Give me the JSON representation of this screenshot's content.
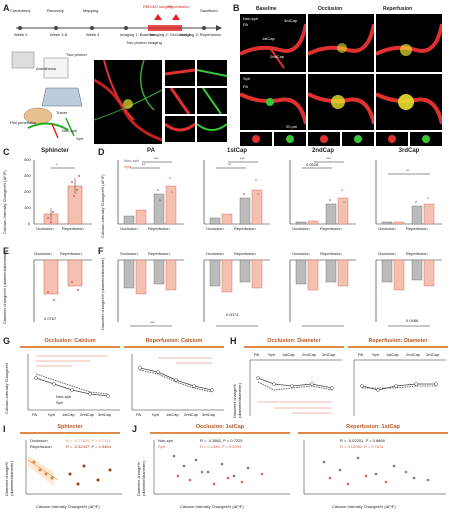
{
  "panels": {
    "A": "A",
    "B": "B",
    "C": "C",
    "D": "D",
    "E": "E",
    "F": "F",
    "G": "G",
    "H": "H",
    "I": "I",
    "J": "J"
  },
  "timeline": {
    "steps": [
      "Craniotomy",
      "Recovery",
      "Mapping",
      "Two photon imaging",
      "Sacrificed"
    ],
    "weeks": [
      "Week 0",
      "Week 3-8",
      "Week 4",
      "Imaging 1: Baseline",
      "Imaging 2: Occlusion 1",
      "Imaging 3: Reperfusion"
    ],
    "surgery_labels": [
      "RMCAO surgery",
      "Reperfusion"
    ],
    "duration": "1 hour",
    "imaging_label": "Two photon imaging"
  },
  "setup_labels": [
    "Anesthesia",
    "Two photon",
    "Tracer",
    "Pial penetrator",
    "Non-sph",
    "Sph"
  ],
  "colors": {
    "red": "#e02020",
    "green": "#38c838",
    "yellow": "#e8e030",
    "dark_orange": "#b8561e",
    "salmon": "#f0a090",
    "gray": "#999999"
  },
  "B": {
    "columns": [
      "Baseline",
      "Occlusion",
      "Reperfusion"
    ],
    "rows": [
      "Non-sph",
      "Sph"
    ],
    "labels": [
      "PA",
      "1stCap",
      "2ndCap",
      "3rdCap",
      "Sph",
      "PA"
    ],
    "scale": "20 μm"
  },
  "C": {
    "title": "Sphincter",
    "ylabel": "Calcium Intensity Changes% (ΔF/F)",
    "categories": [
      "Occlusion",
      "Reperfusion"
    ],
    "yticks": [
      "0",
      "100",
      "200",
      "300",
      "400"
    ],
    "sig": "*"
  },
  "D": {
    "ylabel": "Calcium Intensity Changes% (ΔF/F)",
    "legend": [
      "Non-sph",
      "Sph"
    ],
    "categories": [
      "Occlusion",
      "Reperfusion"
    ],
    "subplots": [
      {
        "title": "PA",
        "sig": [
          "**",
          "***",
          "*"
        ]
      },
      {
        "title": "1stCap",
        "sig": [
          "**",
          "*",
          "***"
        ]
      },
      {
        "title": "2ndCap",
        "sig": [
          "0.0528",
          "*",
          "***"
        ]
      },
      {
        "title": "3rdCap",
        "sig": [
          "**"
        ]
      }
    ],
    "yticks": [
      "0",
      "200",
      "400",
      "600",
      "800"
    ]
  },
  "E": {
    "ylabel": "Diameter changes% (diameter/diameter)",
    "categories": [
      "Occlusion",
      "Reperfusion"
    ],
    "pval": "0.0767",
    "yticks": [
      "0",
      "-20",
      "-40",
      "-60",
      "-80"
    ]
  },
  "F": {
    "ylabel": "Diameter changes% (diameter/diameter)",
    "categories": [
      "Occlusion",
      "Reperfusion"
    ],
    "pvals": [
      "0.0074",
      "0.0486"
    ],
    "sig": [
      "***",
      "**",
      "*",
      "*",
      "*",
      "*"
    ],
    "yticks": [
      "0",
      "-20",
      "-40",
      "-60",
      "-80"
    ]
  },
  "G": {
    "titles": [
      "Occlusion: Calcium",
      "Reperfusion: Calcium"
    ],
    "ylabel": "Calcium Intensity Changes%",
    "xticks": [
      "PA",
      "Sph",
      "1stCap",
      "2ndCap",
      "3rdCap"
    ],
    "legend": [
      "Non-sph",
      "Sph"
    ],
    "yticks": [
      "0",
      "100",
      "200",
      "300"
    ]
  },
  "H": {
    "titles": [
      "Occlusion: Diameter",
      "Reperfusion: Diameter"
    ],
    "ylabel": "Diameter change% (diameter/diameter)",
    "xticks": [
      "PA",
      "Sph",
      "1stCap",
      "2ndCap",
      "3rdCap"
    ],
    "yticks": [
      "0",
      "-20",
      "-40",
      "-60"
    ]
  },
  "I": {
    "title": "Sphincter",
    "legend": [
      "Occlusion",
      "Reperfusion"
    ],
    "stats": [
      "R = -0.77520, P = 0.7111",
      "R = -0.32437, P = 0.5454"
    ],
    "xlabel": "Calcium Intensity Changes% (ΔF/F)",
    "ylabel": "Diameter change% (diameter/diameter)"
  },
  "J": {
    "titles": [
      "Occlusion: 1stCap",
      "Reperfusion: 1stCap"
    ],
    "legend": [
      "Non-sph",
      "Sph"
    ],
    "stats_left": [
      "R = -0.3862, P = 0.7225",
      "R = 0.1386, P = 0.6394"
    ],
    "stats_right": [
      "R = -0.02201, P = 0.8869",
      "R = 0.12082, P = 0.7611"
    ],
    "xlabel": "Calcium Intensity Changes% (ΔF/F)",
    "ylabel": "Diameter change% (diameter/diameter)"
  }
}
